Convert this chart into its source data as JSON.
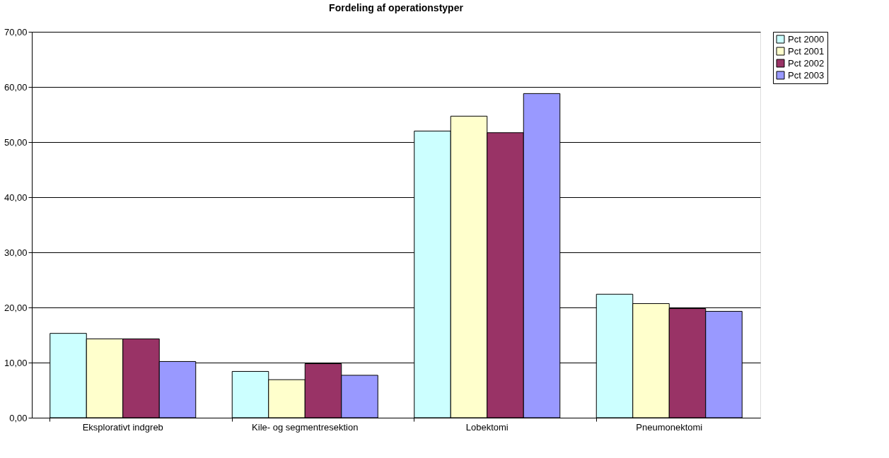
{
  "chart_data": {
    "type": "bar",
    "title": "Fordeling af operationstyper",
    "categories": [
      "Eksplorativt indgreb",
      "Kile- og segmentresektion",
      "Lobektomi",
      "Pneumonektomi"
    ],
    "series": [
      {
        "name": "Pct 2000",
        "color": "#ccffff",
        "values": [
          15.3,
          8.4,
          52.0,
          22.4
        ]
      },
      {
        "name": "Pct 2001",
        "color": "#ffffcc",
        "values": [
          14.3,
          6.9,
          54.7,
          20.7
        ]
      },
      {
        "name": "Pct 2002",
        "color": "#993366",
        "values": [
          14.3,
          9.8,
          51.7,
          19.8
        ]
      },
      {
        "name": "Pct 2003",
        "color": "#9999ff",
        "values": [
          10.2,
          7.7,
          58.8,
          19.3
        ]
      }
    ],
    "ylim": [
      0,
      70
    ],
    "yticks": [
      {
        "value": 0,
        "label": "0,00"
      },
      {
        "value": 10,
        "label": "10,00"
      },
      {
        "value": 20,
        "label": "20,00"
      },
      {
        "value": 30,
        "label": "30,00"
      },
      {
        "value": 40,
        "label": "40,00"
      },
      {
        "value": 50,
        "label": "50,00"
      },
      {
        "value": 60,
        "label": "60,00"
      },
      {
        "value": 70,
        "label": "70,00"
      }
    ],
    "grid": "y",
    "legend": "right"
  }
}
